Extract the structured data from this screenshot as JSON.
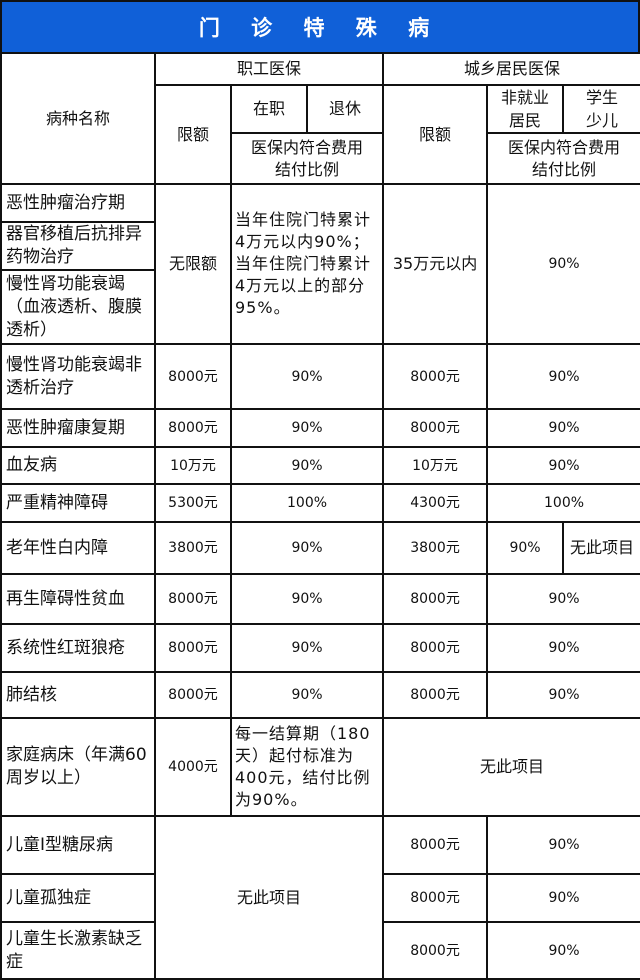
{
  "title": "门 诊 特 殊 病",
  "header": {
    "disease_name": "病种名称",
    "employee": "职工医保",
    "resident": "城乡居民医保",
    "limit": "限额",
    "active": "在职",
    "retired": "退休",
    "non_employed": "非就业",
    "non_employed_2": "居民",
    "student": "学生",
    "student_2": "少儿",
    "ratio": "医保内符合费用",
    "ratio_2": "结付比例"
  },
  "rows": [
    {
      "name": "恶性肿瘤治疗期"
    },
    {
      "name": "器官移植后抗排异药物治疗"
    },
    {
      "name": "慢性肾功能衰竭（血液透析、腹膜透析）"
    },
    {
      "name": "慢性肾功能衰竭非透析治疗",
      "emp_limit": "8000元",
      "emp_ratio": "90%",
      "res_limit": "8000元",
      "res_ratio": "90%"
    },
    {
      "name": "恶性肿瘤康复期",
      "emp_limit": "8000元",
      "emp_ratio": "90%",
      "res_limit": "8000元",
      "res_ratio": "90%"
    },
    {
      "name": "血友病",
      "emp_limit": "10万元",
      "emp_ratio": "90%",
      "res_limit": "10万元",
      "res_ratio": "90%"
    },
    {
      "name": "严重精神障碍",
      "emp_limit": "5300元",
      "emp_ratio": "100%",
      "res_limit": "4300元",
      "res_ratio": "100%"
    },
    {
      "name": "老年性白内障",
      "emp_limit": "3800元",
      "emp_ratio": "90%",
      "res_limit": "3800元",
      "res_ratio": "90%",
      "res_student": "无此项目"
    },
    {
      "name": "再生障碍性贫血",
      "emp_limit": "8000元",
      "emp_ratio": "90%",
      "res_limit": "8000元",
      "res_ratio": "90%"
    },
    {
      "name": "系统性红斑狼疮",
      "emp_limit": "8000元",
      "emp_ratio": "90%",
      "res_limit": "8000元",
      "res_ratio": "90%"
    },
    {
      "name": "肺结核",
      "emp_limit": "8000元",
      "emp_ratio": "90%",
      "res_limit": "8000元",
      "res_ratio": "90%"
    },
    {
      "name": "家庭病床（年满60周岁以上）",
      "emp_limit": "4000元",
      "emp_ratio": "每一结算期（180天）起付标准为400元，结付比例为90%。",
      "resident": "无此项目"
    },
    {
      "name": "儿童Ⅰ型糖尿病",
      "res_limit": "8000元",
      "res_ratio": "90%"
    },
    {
      "name": "儿童孤独症",
      "res_limit": "8000元",
      "res_ratio": "90%"
    },
    {
      "name": "儿童生长激素缺乏症",
      "res_limit": "8000元",
      "res_ratio": "90%"
    }
  ],
  "group1": {
    "emp_limit": "无限额",
    "emp_ratio": "当年住院门特累计4万元以内90%；当年住院门特累计4万元以上的部分95%。",
    "res_limit": "35万元以内",
    "res_ratio": "90%"
  },
  "children_employee": "无此项目"
}
